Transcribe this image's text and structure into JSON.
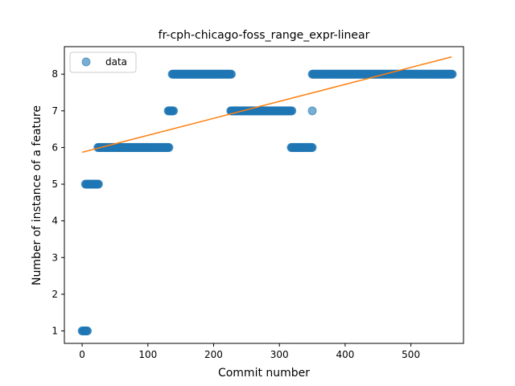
{
  "chart_data": {
    "type": "scatter",
    "title": "fr-cph-chicago-foss_range_expr-linear",
    "xlabel": "Commit number",
    "ylabel": "Number of instance of a feature",
    "xlim": [
      -27,
      580
    ],
    "ylim": [
      0.66,
      8.75
    ],
    "xticks": [
      0,
      100,
      200,
      300,
      400,
      500
    ],
    "yticks": [
      1,
      2,
      3,
      4,
      5,
      6,
      7,
      8
    ],
    "grid": false,
    "legend": {
      "position": "top-left",
      "entries": [
        "data"
      ]
    },
    "colors": {
      "data": "#1f77b4",
      "fit": "#ff7f0e"
    },
    "series": [
      {
        "name": "data",
        "kind": "scatter",
        "segments": [
          {
            "x_start": 0,
            "x_end": 8,
            "y": 1
          },
          {
            "x_start": 5,
            "x_end": 25,
            "y": 5
          },
          {
            "x_start": 24,
            "x_end": 132,
            "y": 6
          },
          {
            "x_start": 131,
            "x_end": 139,
            "y": 7
          },
          {
            "x_start": 137,
            "x_end": 227,
            "y": 8
          },
          {
            "x_start": 226,
            "x_end": 319,
            "y": 7
          },
          {
            "x_start": 318,
            "x_end": 350,
            "y": 6
          },
          {
            "x_start": 350,
            "x_end": 563,
            "y": 8
          }
        ],
        "points": [
          [
            350,
            7
          ]
        ]
      },
      {
        "kind": "line",
        "x": [
          0,
          562
        ],
        "y": [
          5.87,
          8.47
        ]
      }
    ]
  }
}
